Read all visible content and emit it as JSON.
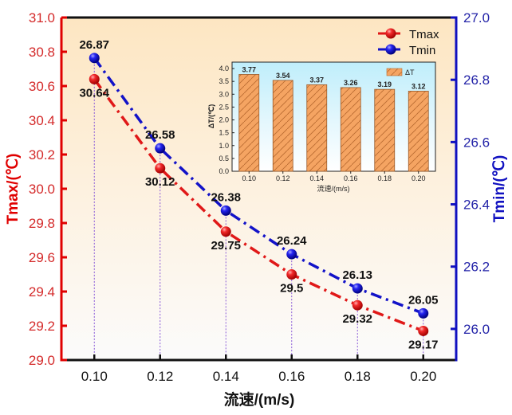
{
  "chart_data": {
    "type": "line",
    "title": "",
    "xlabel": "流速/(m/s)",
    "x": [
      0.1,
      0.12,
      0.14,
      0.16,
      0.18,
      0.2
    ],
    "x_tick_labels": [
      "0.10",
      "0.12",
      "0.14",
      "0.16",
      "0.18",
      "0.20"
    ],
    "xlim": [
      0.09,
      0.21
    ],
    "grid": false,
    "legend_position": "top-right",
    "left_axis": {
      "label": "Tmax/(℃)",
      "ylim": [
        29.0,
        31.0
      ],
      "ticks": [
        29.0,
        29.2,
        29.4,
        29.6,
        29.8,
        30.0,
        30.2,
        30.4,
        30.6,
        30.8,
        31.0
      ],
      "tick_labels": [
        "29.0",
        "29.2",
        "29.4",
        "29.6",
        "29.8",
        "30.0",
        "30.2",
        "30.4",
        "30.6",
        "30.8",
        "31.0"
      ],
      "color": "#e00000"
    },
    "right_axis": {
      "label": "Tmin/(℃)",
      "ylim": [
        25.9,
        27.0
      ],
      "ticks": [
        26.0,
        26.2,
        26.4,
        26.6,
        26.8,
        27.0
      ],
      "tick_labels": [
        "26.0",
        "26.2",
        "26.4",
        "26.6",
        "26.8",
        "27.0"
      ],
      "color": "#1010c0"
    },
    "series": [
      {
        "name": "Tmax",
        "axis": "left",
        "color": "#e01818",
        "line_style": "dash-dot",
        "values": [
          30.64,
          30.12,
          29.75,
          29.5,
          29.32,
          29.17
        ],
        "data_labels": [
          "30.64",
          "30.12",
          "29.75",
          "29.5",
          "29.32",
          "29.17"
        ],
        "label_position": "below"
      },
      {
        "name": "Tmin",
        "axis": "right",
        "color": "#1212c8",
        "line_style": "dash-dot",
        "values": [
          26.87,
          26.58,
          26.38,
          26.24,
          26.13,
          26.05
        ],
        "data_labels": [
          "26.87",
          "26.58",
          "26.38",
          "26.24",
          "26.13",
          "26.05"
        ],
        "label_position": "above"
      }
    ],
    "drop_lines_color": "#8a5ad8",
    "inset": {
      "type": "bar",
      "categories": [
        "0.10",
        "0.12",
        "0.14",
        "0.16",
        "0.18",
        "0.20"
      ],
      "values": [
        3.77,
        3.54,
        3.37,
        3.26,
        3.19,
        3.12
      ],
      "data_labels": [
        "3.77",
        "3.54",
        "3.37",
        "3.26",
        "3.19",
        "3.12"
      ],
      "ylabel": "ΔT/(℃)",
      "xlabel": "流速/(m/s)",
      "ylim": [
        0,
        4.25
      ],
      "y_ticks": [
        0.0,
        0.5,
        1.0,
        1.5,
        2.0,
        2.5,
        3.0,
        3.5,
        4.0
      ],
      "y_tick_labels": [
        "0.0",
        "0.5",
        "1.0",
        "1.5",
        "2.0",
        "2.5",
        "3.0",
        "3.5",
        "4.0"
      ],
      "legend": "ΔT",
      "legend_position": "top-right",
      "bar_color": "#f5a462",
      "hatch": "diagonal"
    }
  }
}
